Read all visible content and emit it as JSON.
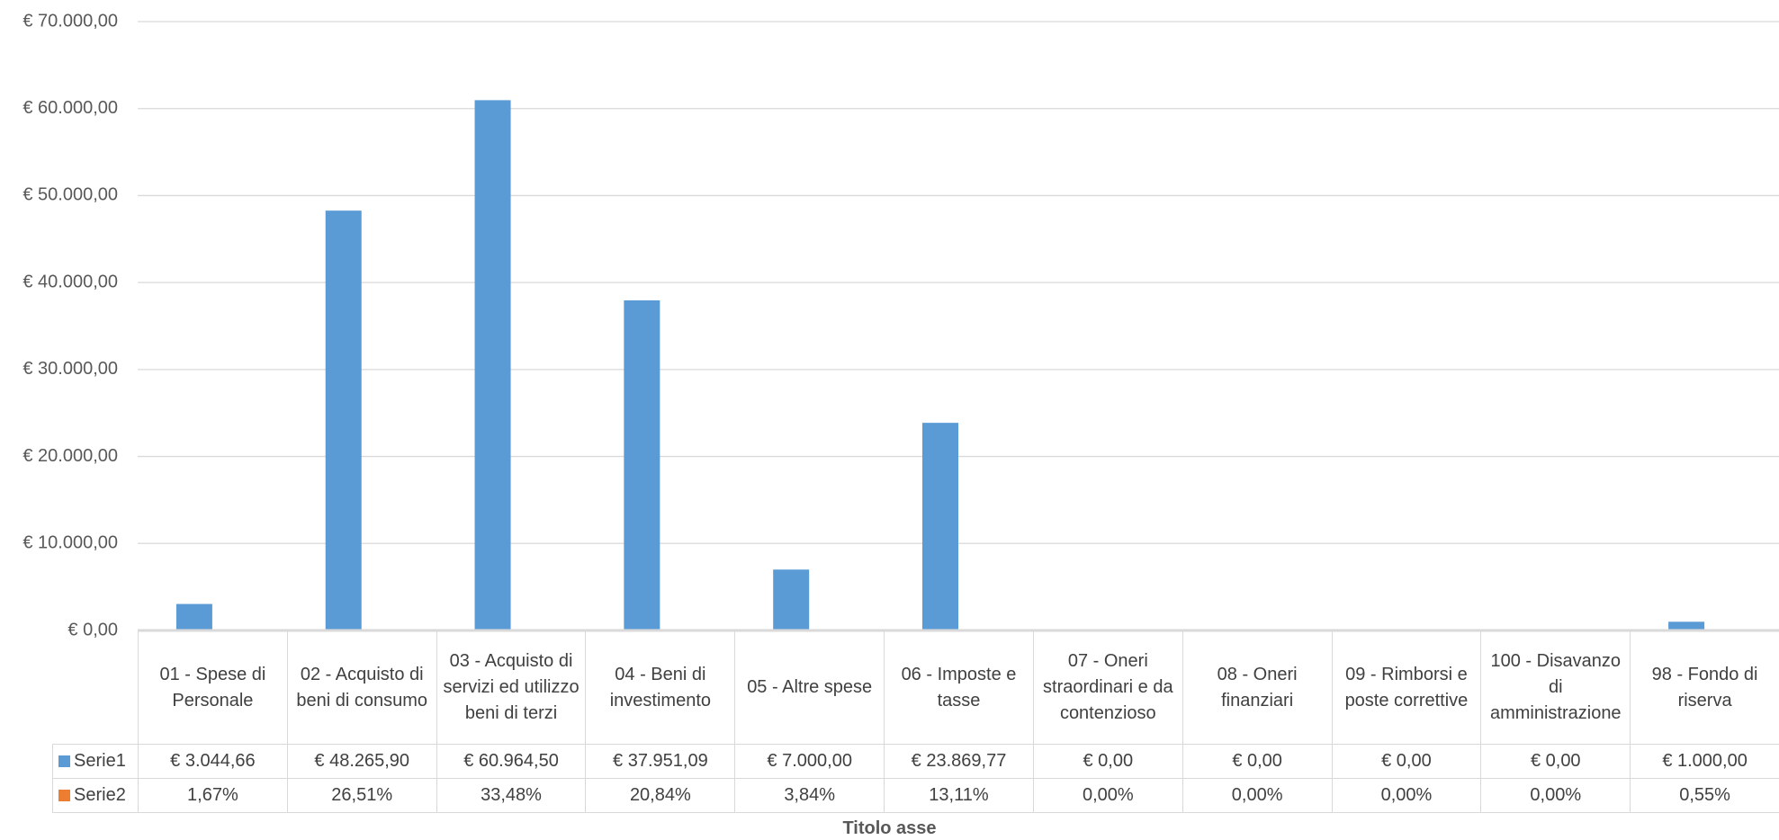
{
  "chart_data": {
    "type": "bar",
    "x_axis_title": "Titolo asse",
    "categories": [
      "01 - Spese di Personale",
      "02 - Acquisto di beni di consumo",
      "03 - Acquisto di servizi ed utilizzo beni di terzi",
      "04 - Beni di investimento",
      "05 - Altre spese",
      "06 - Imposte e tasse",
      "07 - Oneri straordinari e da contenzioso",
      "08 - Oneri finanziari",
      "09 - Rimborsi e poste correttive",
      "100 - Disavanzo di amministrazione",
      "98 - Fondo di riserva"
    ],
    "series": [
      {
        "name": "Serie1",
        "color": "#5b9bd5",
        "values": [
          3044.66,
          48265.9,
          60964.5,
          37951.09,
          7000.0,
          23869.77,
          0,
          0,
          0,
          0,
          1000.0
        ],
        "value_labels": [
          "€ 3.044,66",
          "€ 48.265,90",
          "€ 60.964,50",
          "€ 37.951,09",
          "€ 7.000,00",
          "€ 23.869,77",
          "€ 0,00",
          "€ 0,00",
          "€ 0,00",
          "€ 0,00",
          "€ 1.000,00"
        ]
      },
      {
        "name": "Serie2",
        "color": "#ed7d31",
        "values": [
          1.67,
          26.51,
          33.48,
          20.84,
          3.84,
          13.11,
          0,
          0,
          0,
          0,
          0.55
        ],
        "value_labels": [
          "1,67%",
          "26,51%",
          "33,48%",
          "20,84%",
          "3,84%",
          "13,11%",
          "0,00%",
          "0,00%",
          "0,00%",
          "0,00%",
          "0,55%"
        ]
      }
    ],
    "ylim": [
      0,
      70000
    ],
    "yticks": [
      {
        "value": 0,
        "label": "€ 0,00"
      },
      {
        "value": 10000,
        "label": "€ 10.000,00"
      },
      {
        "value": 20000,
        "label": "€ 20.000,00"
      },
      {
        "value": 30000,
        "label": "€ 30.000,00"
      },
      {
        "value": 40000,
        "label": "€ 40.000,00"
      },
      {
        "value": 50000,
        "label": "€ 50.000,00"
      },
      {
        "value": 60000,
        "label": "€ 60.000,00"
      },
      {
        "value": 70000,
        "label": "€ 70.000,00"
      }
    ],
    "grid": true
  }
}
